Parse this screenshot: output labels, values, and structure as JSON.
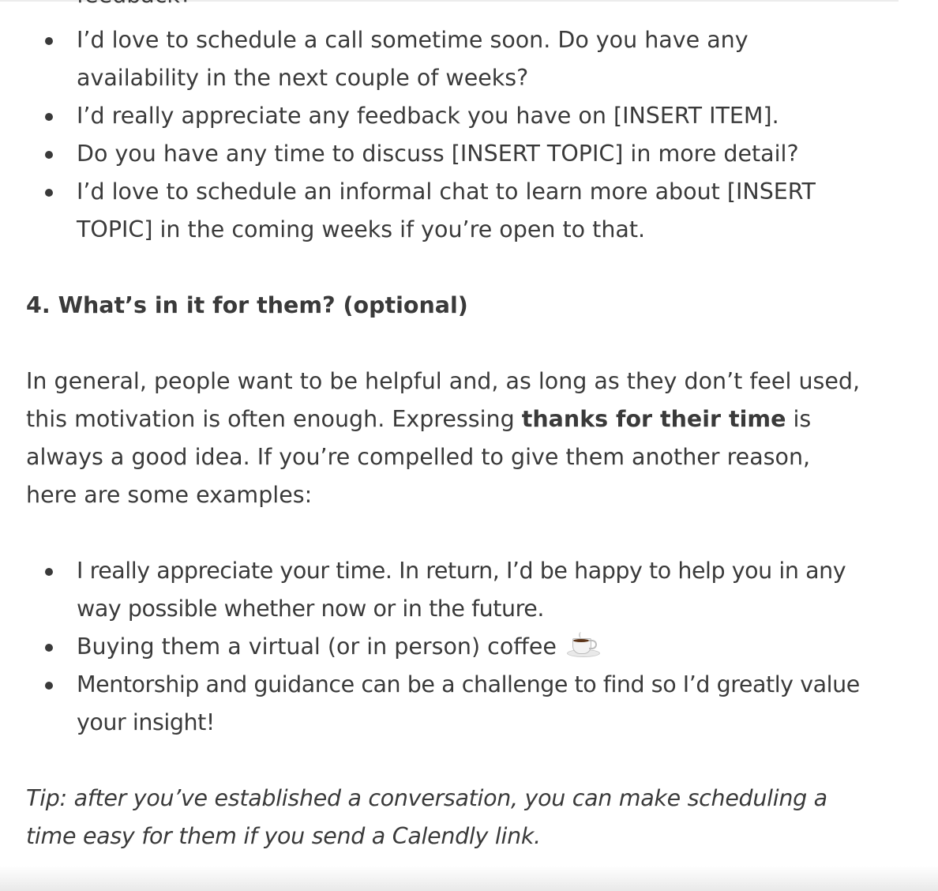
{
  "cut_text": "feedback?",
  "request_list": [
    "I’d love to schedule a call sometime soon. Do you have any availability in the next couple of weeks?",
    "I’d really appreciate any feedback you have on [INSERT ITEM].",
    "Do you have any time to discuss [INSERT TOPIC] in more detail?",
    "I’d love to schedule an informal chat to learn more about [INSERT TOPIC] in the coming weeks if you’re open to that."
  ],
  "section_heading": "4. What’s in it for them? (optional)",
  "intro_paragraph": {
    "before_bold": "In general, people want to be helpful and, as long as they don’t feel used, this motivation is often enough. Expressing ",
    "bold": "thanks for their time",
    "after_bold": " is always a good idea. If you’re compelled to give them another reason, here are some examples:"
  },
  "examples_list": {
    "item1": "I really appreciate your time. In return, I’d be happy to help you in any way possible whether now or in the future.",
    "item2": "Buying them a virtual (or in person) coffee",
    "item2_icon": "coffee-icon",
    "item3": "Mentorship and guidance can be a challenge to find so I’d greatly value your insight!"
  },
  "tip": "Tip: after you’ve established a conversation, you can make scheduling a time easy for them if you send a Calendly link."
}
